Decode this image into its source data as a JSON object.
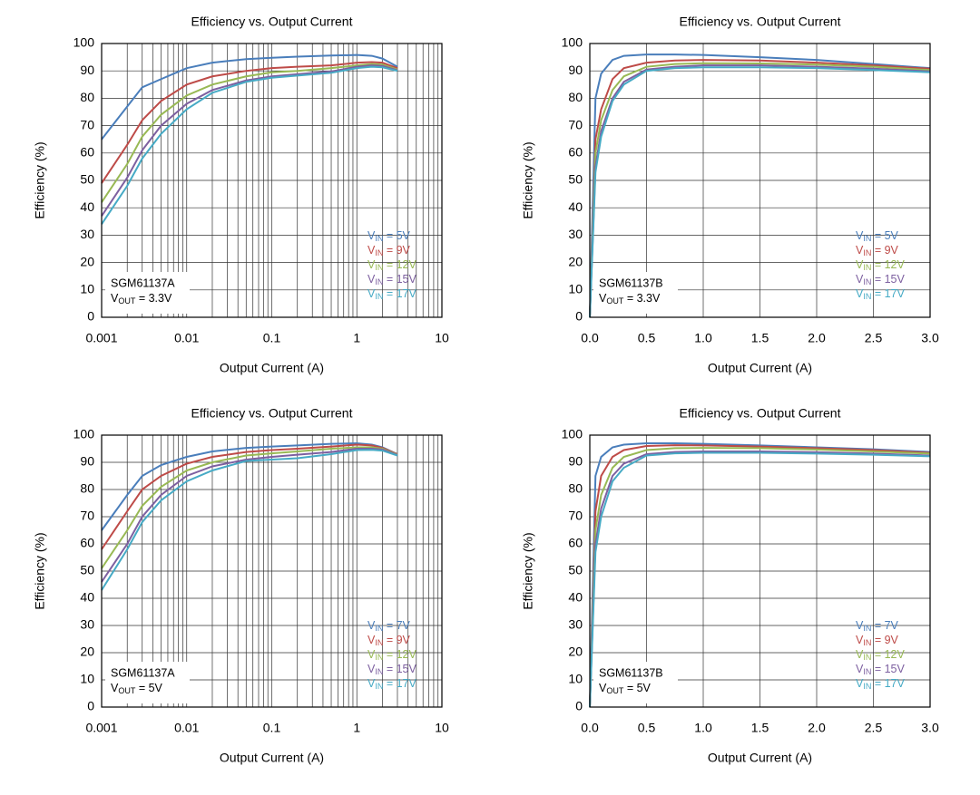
{
  "chart_data": [
    {
      "type": "line",
      "title": "Efficiency vs. Output Current",
      "x_label": "Output Current (A)",
      "y_label": "Efficiency (%)",
      "xlog": true,
      "grid": true,
      "legend": "right",
      "xlim": [
        0.001,
        10
      ],
      "xticks": [
        0.001,
        0.01,
        0.1,
        1,
        10
      ],
      "ylim": [
        0,
        100
      ],
      "yticks": [
        0,
        10,
        20,
        30,
        40,
        50,
        60,
        70,
        80,
        90,
        100
      ],
      "annotations": [
        "SGM61137A",
        "VOUT = 3.3V"
      ],
      "x": [
        0.001,
        0.002,
        0.003,
        0.005,
        0.01,
        0.02,
        0.05,
        0.1,
        0.2,
        0.5,
        1,
        1.5,
        2,
        3
      ],
      "series": [
        {
          "name": "VIN = 5V",
          "color": "#4a7ebb",
          "values": [
            65,
            77,
            84,
            87,
            91,
            93,
            94.3,
            94.8,
            95.2,
            95.6,
            95.8,
            95.5,
            94.5,
            91.5
          ]
        },
        {
          "name": "VIN = 9V",
          "color": "#be4b48",
          "values": [
            49,
            63,
            72,
            79,
            85,
            88,
            90,
            91,
            91.5,
            92,
            93,
            93.2,
            93,
            91
          ]
        },
        {
          "name": "VIN = 12V",
          "color": "#98b954",
          "values": [
            42,
            56,
            66,
            74,
            81,
            85,
            88,
            89.5,
            90,
            91,
            92,
            92.5,
            92.3,
            90.5
          ]
        },
        {
          "name": "VIN = 15V",
          "color": "#7d60a0",
          "values": [
            37,
            51,
            61,
            70,
            78,
            83,
            86.5,
            88,
            88.8,
            89.8,
            91.5,
            92,
            91.8,
            90.2
          ]
        },
        {
          "name": "VIN = 17V",
          "color": "#46aac5",
          "values": [
            34,
            48,
            58,
            67,
            76,
            82,
            86,
            87.5,
            88.3,
            89.3,
            91,
            91.5,
            91.3,
            90
          ]
        }
      ]
    },
    {
      "type": "line",
      "title": "Efficiency vs. Output Current",
      "x_label": "Output Current (A)",
      "y_label": "Efficiency (%)",
      "xlog": false,
      "grid": true,
      "legend": "right",
      "xlim": [
        0,
        3
      ],
      "xticks": [
        {
          "value": 0,
          "label": "0.0"
        },
        0.5,
        {
          "value": 1,
          "label": "1.0"
        },
        1.5,
        {
          "value": 2,
          "label": "2.0"
        },
        2.5,
        {
          "value": 3,
          "label": "3.0"
        }
      ],
      "ylim": [
        0,
        100
      ],
      "yticks": [
        0,
        10,
        20,
        30,
        40,
        50,
        60,
        70,
        80,
        90,
        100
      ],
      "annotations": [
        "SGM61137B",
        "VOUT = 3.3V"
      ],
      "x": [
        0,
        0.05,
        0.1,
        0.2,
        0.3,
        0.5,
        0.75,
        1,
        1.5,
        2,
        2.5,
        3
      ],
      "series": [
        {
          "name": "VIN = 5V",
          "color": "#4a7ebb",
          "values": [
            0,
            80,
            89,
            94,
            95.5,
            96,
            96,
            95.8,
            95,
            94,
            92.5,
            91
          ]
        },
        {
          "name": "VIN = 9V",
          "color": "#be4b48",
          "values": [
            0,
            65,
            76,
            87,
            91,
            93,
            93.8,
            94,
            93.8,
            93,
            92,
            90.8
          ]
        },
        {
          "name": "VIN = 12V",
          "color": "#98b954",
          "values": [
            0,
            60,
            72,
            83,
            88,
            91.5,
            92.5,
            92.8,
            92.7,
            92.3,
            91.5,
            90.3
          ]
        },
        {
          "name": "VIN = 15V",
          "color": "#7d60a0",
          "values": [
            0,
            55,
            68,
            80,
            86,
            90.5,
            91.5,
            92,
            92,
            91.5,
            90.8,
            89.8
          ]
        },
        {
          "name": "VIN = 17V",
          "color": "#46aac5",
          "values": [
            0,
            53,
            66,
            79,
            85,
            90,
            91,
            91.3,
            91.3,
            91,
            90.3,
            89.5
          ]
        }
      ]
    },
    {
      "type": "line",
      "title": "Efficiency vs. Output Current",
      "x_label": "Output Current (A)",
      "y_label": "Efficiency (%)",
      "xlog": true,
      "grid": true,
      "legend": "right",
      "xlim": [
        0.001,
        10
      ],
      "xticks": [
        0.001,
        0.01,
        0.1,
        1,
        10
      ],
      "ylim": [
        0,
        100
      ],
      "yticks": [
        0,
        10,
        20,
        30,
        40,
        50,
        60,
        70,
        80,
        90,
        100
      ],
      "annotations": [
        "SGM61137A",
        "VOUT = 5V"
      ],
      "x": [
        0.001,
        0.002,
        0.003,
        0.005,
        0.01,
        0.02,
        0.05,
        0.1,
        0.2,
        0.5,
        1,
        1.5,
        2,
        3
      ],
      "series": [
        {
          "name": "VIN = 7V",
          "color": "#4a7ebb",
          "values": [
            65,
            78,
            85,
            89,
            92,
            94,
            95.3,
            95.8,
            96.2,
            96.8,
            97,
            96.5,
            95.5,
            93
          ]
        },
        {
          "name": "VIN = 9V",
          "color": "#be4b48",
          "values": [
            58,
            72,
            80,
            85,
            89.5,
            92,
            93.8,
            94.5,
            95,
            95.8,
            96.5,
            96.2,
            95.3,
            93
          ]
        },
        {
          "name": "VIN = 12V",
          "color": "#98b954",
          "values": [
            51,
            65,
            74,
            81,
            87,
            90,
            92.5,
            93.3,
            94,
            95,
            95.5,
            95.5,
            95,
            92.8
          ]
        },
        {
          "name": "VIN = 15V",
          "color": "#7d60a0",
          "values": [
            46,
            60,
            70,
            78,
            85,
            88.5,
            91,
            92,
            92.8,
            93.8,
            95,
            95,
            94.7,
            92.7
          ]
        },
        {
          "name": "VIN = 17V",
          "color": "#46aac5",
          "values": [
            43,
            58,
            68,
            76,
            83,
            87,
            90.5,
            91,
            91.5,
            93,
            94.5,
            94.6,
            94.3,
            92.5
          ]
        }
      ]
    },
    {
      "type": "line",
      "title": "Efficiency vs. Output Current",
      "x_label": "Output Current (A)",
      "y_label": "Efficiency (%)",
      "xlog": false,
      "grid": true,
      "legend": "right",
      "xlim": [
        0,
        3
      ],
      "xticks": [
        {
          "value": 0,
          "label": "0.0"
        },
        0.5,
        {
          "value": 1,
          "label": "1.0"
        },
        1.5,
        {
          "value": 2,
          "label": "2.0"
        },
        2.5,
        {
          "value": 3,
          "label": "3.0"
        }
      ],
      "ylim": [
        0,
        100
      ],
      "yticks": [
        0,
        10,
        20,
        30,
        40,
        50,
        60,
        70,
        80,
        90,
        100
      ],
      "annotations": [
        "SGM61137B",
        "VOUT = 5V"
      ],
      "x": [
        0,
        0.05,
        0.1,
        0.2,
        0.3,
        0.5,
        0.75,
        1,
        1.5,
        2,
        2.5,
        3
      ],
      "series": [
        {
          "name": "VIN = 7V",
          "color": "#4a7ebb",
          "values": [
            0,
            85,
            92,
            95.5,
            96.5,
            97,
            97,
            96.8,
            96.2,
            95.5,
            94.8,
            93.8
          ]
        },
        {
          "name": "VIN = 9V",
          "color": "#be4b48",
          "values": [
            0,
            72,
            85,
            92,
            94.5,
            96,
            96.3,
            96.2,
            95.8,
            95.2,
            94.5,
            93.5
          ]
        },
        {
          "name": "VIN = 12V",
          "color": "#98b954",
          "values": [
            0,
            65,
            78,
            88,
            92,
            94.5,
            95.2,
            95.3,
            95.2,
            94.7,
            94,
            93.2
          ]
        },
        {
          "name": "VIN = 15V",
          "color": "#7d60a0",
          "values": [
            0,
            60,
            73,
            85,
            89.5,
            93,
            93.8,
            94,
            94,
            93.7,
            93.2,
            92.5
          ]
        },
        {
          "name": "VIN = 17V",
          "color": "#46aac5",
          "values": [
            0,
            57,
            70,
            83,
            88,
            92.5,
            93.3,
            93.5,
            93.5,
            93.2,
            92.8,
            92.2
          ]
        }
      ]
    }
  ]
}
